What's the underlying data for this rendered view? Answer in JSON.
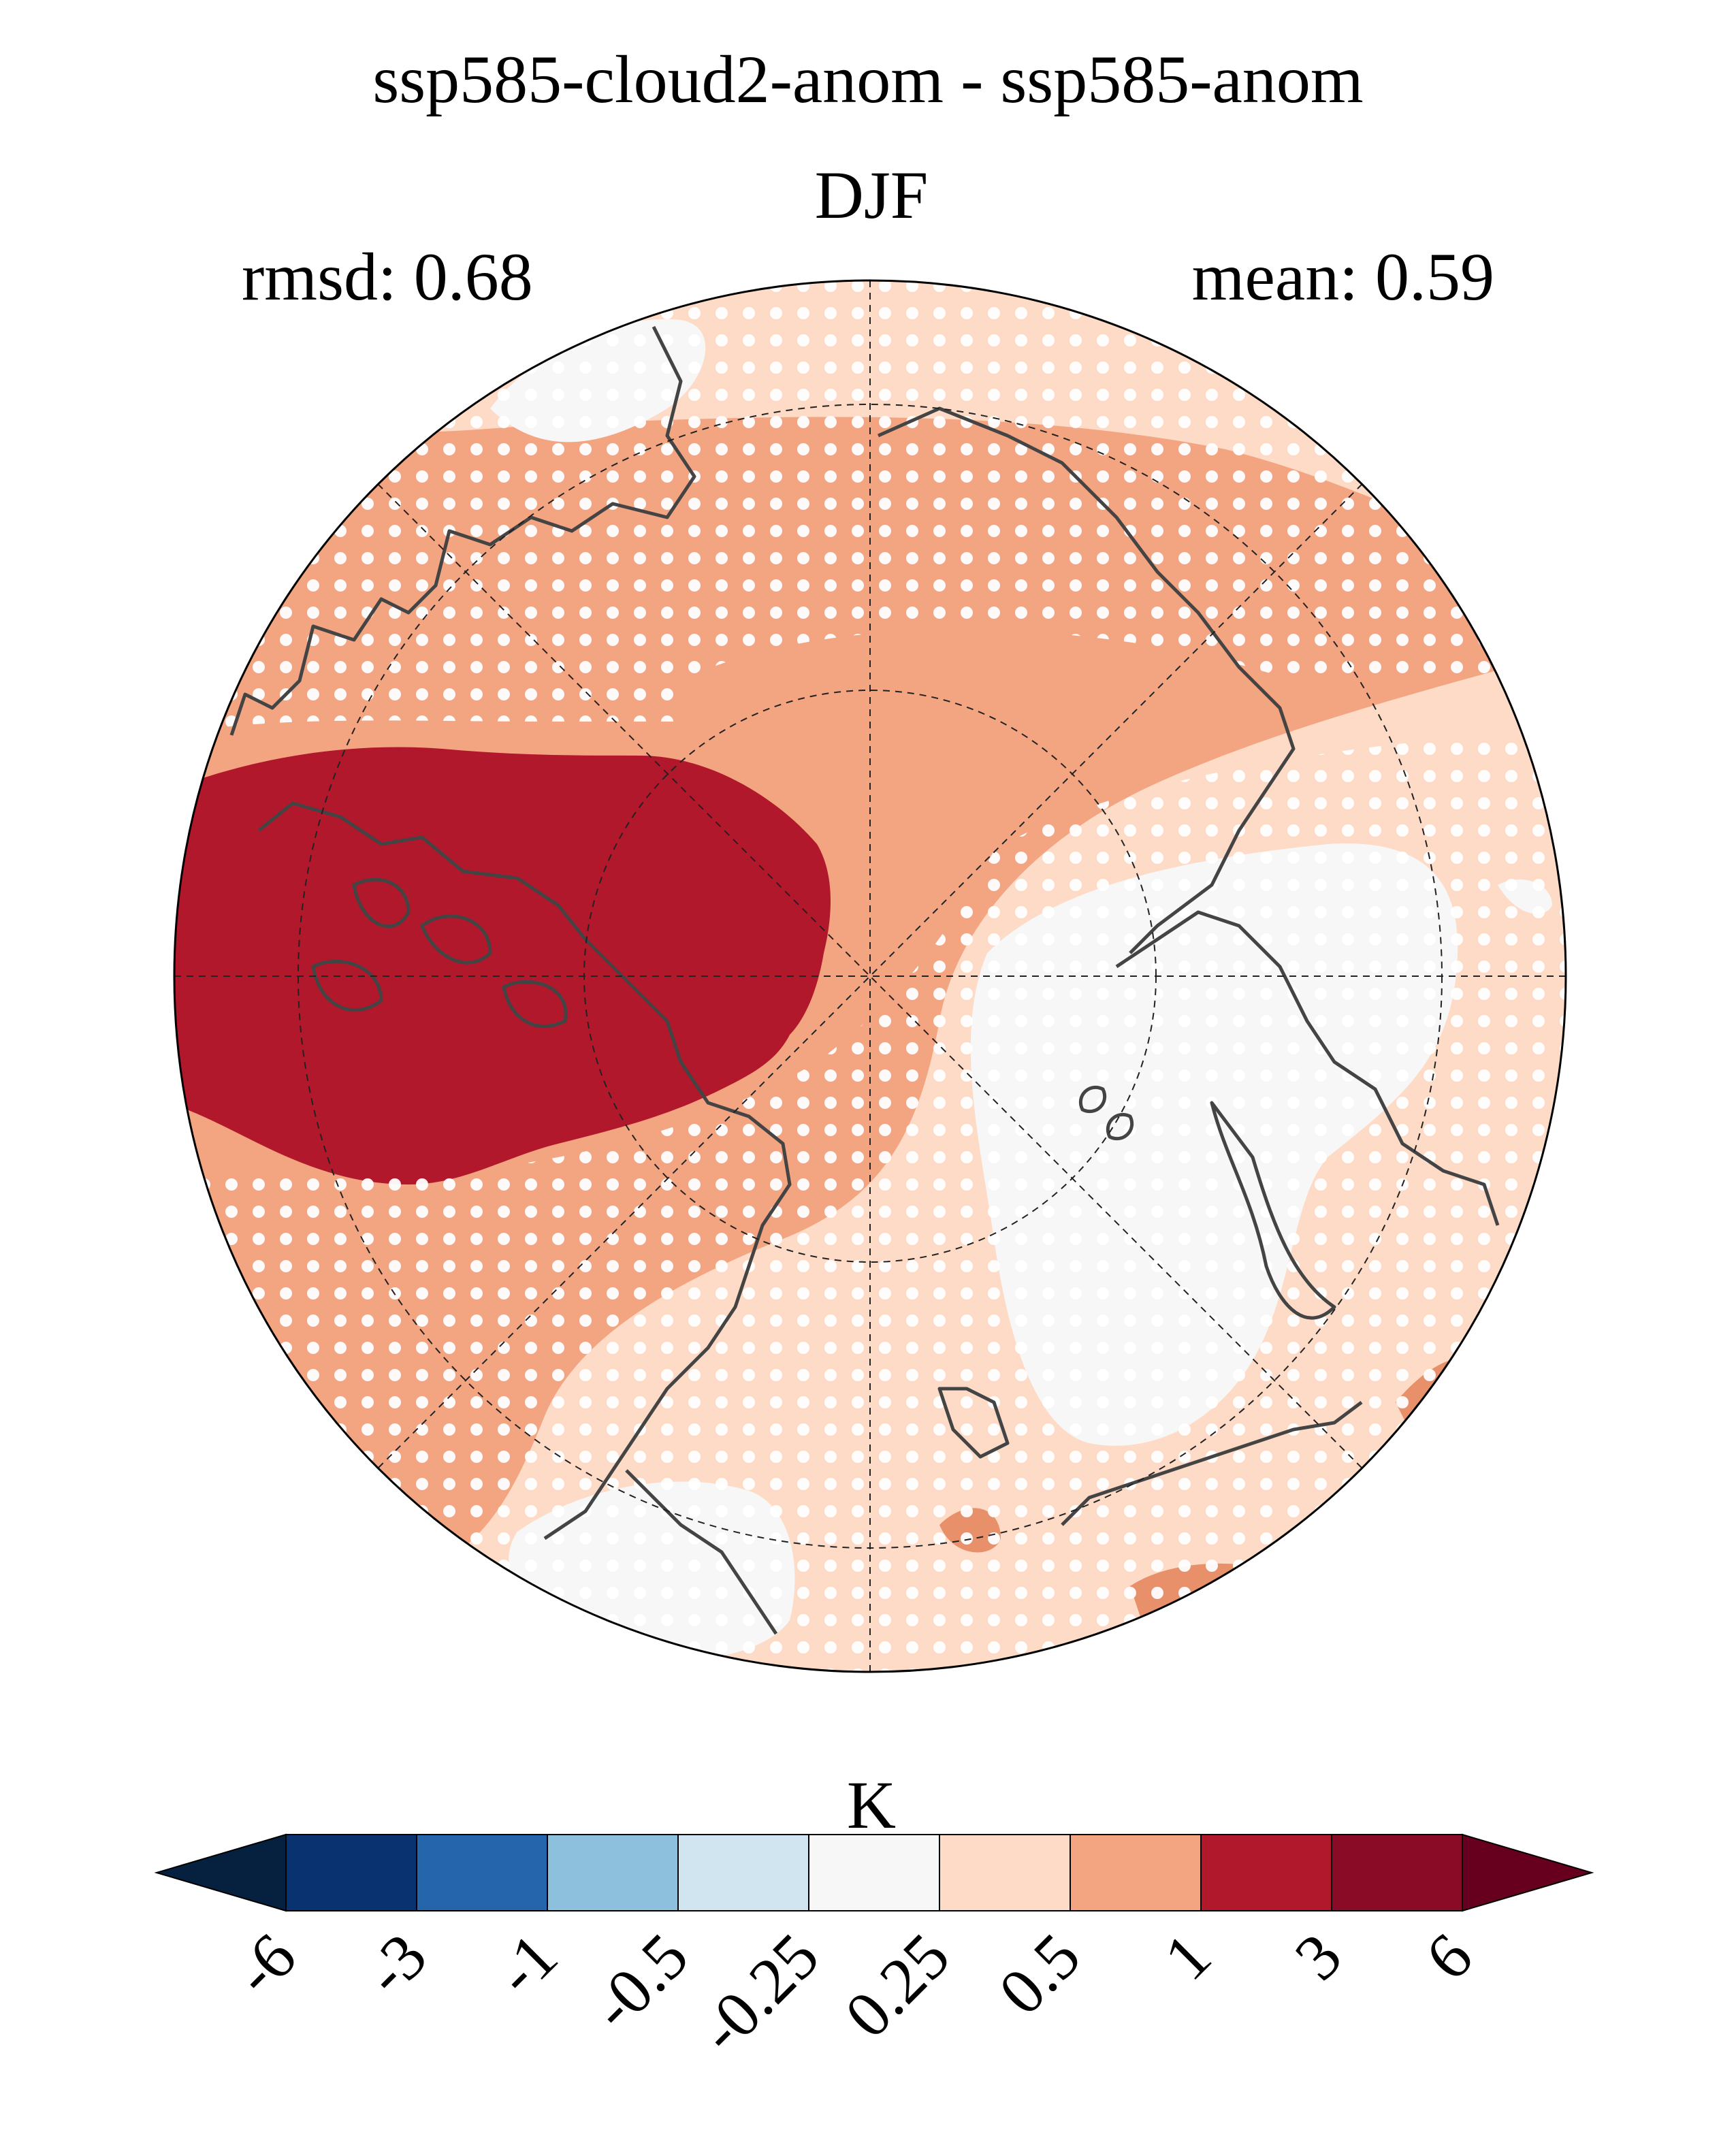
{
  "title": "ssp585-cloud2-anom - ssp585-anom",
  "season": "DJF",
  "stats": {
    "rmsd": "rmsd: 0.68",
    "mean": "mean: 0.59"
  },
  "colorbar": {
    "unit": "K",
    "ticks": [
      "-6",
      "-3",
      "-1",
      "-0.5",
      "-0.25",
      "0.25",
      "0.5",
      "1",
      "3",
      "6"
    ],
    "colors": [
      "#06213f",
      "#083370",
      "#2465ab",
      "#8dc0dd",
      "#d1e5f0",
      "#f7f7f7",
      "#fddbc7",
      "#f3a481",
      "#b2182b",
      "#890b25",
      "#67001f"
    ]
  },
  "map": {
    "projection": "north-polar-stereographic",
    "coastline_color": "#444444",
    "stippling_color": "#ffffff",
    "field_colors": {
      "near_zero": "#f7f7f7",
      "light_warm": "#fddbc7",
      "warm": "#f3a481",
      "strong_warm": "#b2182b",
      "dark_warm": "#e8906a"
    }
  }
}
